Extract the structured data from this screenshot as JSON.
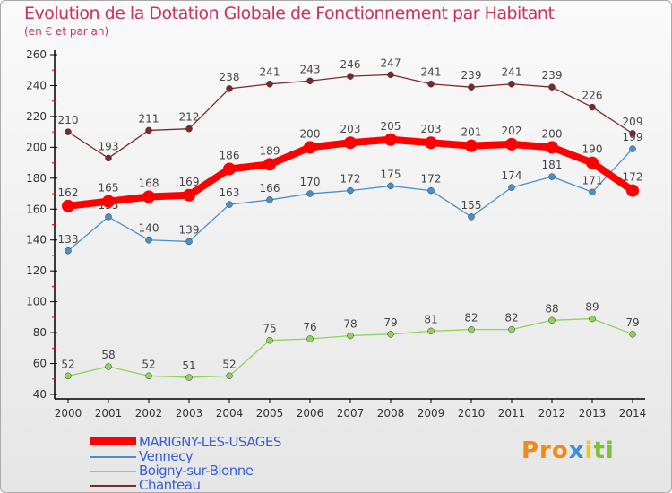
{
  "chart_data": {
    "type": "line",
    "title": "Evolution de la Dotation Globale de Fonctionnement par Habitant",
    "subtitle": "(en € et par an)",
    "x": [
      2000,
      2001,
      2002,
      2003,
      2004,
      2005,
      2006,
      2007,
      2008,
      2009,
      2010,
      2011,
      2012,
      2013,
      2014
    ],
    "ylim": [
      40,
      260
    ],
    "yticks": [
      40,
      60,
      80,
      100,
      120,
      140,
      160,
      180,
      200,
      220,
      240,
      260
    ],
    "grid": false,
    "legend_position": "bottom-left",
    "series": [
      {
        "name": "MARIGNY-LES-USAGES",
        "color": "#ff0000",
        "values": [
          162,
          165,
          168,
          169,
          186,
          189,
          200,
          203,
          205,
          203,
          201,
          202,
          200,
          190,
          172
        ]
      },
      {
        "name": "Vennecy",
        "color": "#4a90c8",
        "values": [
          133,
          155,
          140,
          139,
          163,
          166,
          170,
          172,
          175,
          172,
          155,
          174,
          181,
          171,
          199
        ]
      },
      {
        "name": "Boigny-sur-Bionne",
        "color": "#8fd35a",
        "values": [
          52,
          58,
          52,
          51,
          52,
          75,
          76,
          78,
          79,
          81,
          82,
          82,
          88,
          89,
          79
        ]
      },
      {
        "name": "Chanteau",
        "color": "#7a2a2a",
        "values": [
          210,
          193,
          211,
          212,
          238,
          241,
          243,
          246,
          247,
          241,
          239,
          241,
          239,
          226,
          209
        ]
      }
    ]
  },
  "logo": {
    "text": "Proxiti"
  }
}
